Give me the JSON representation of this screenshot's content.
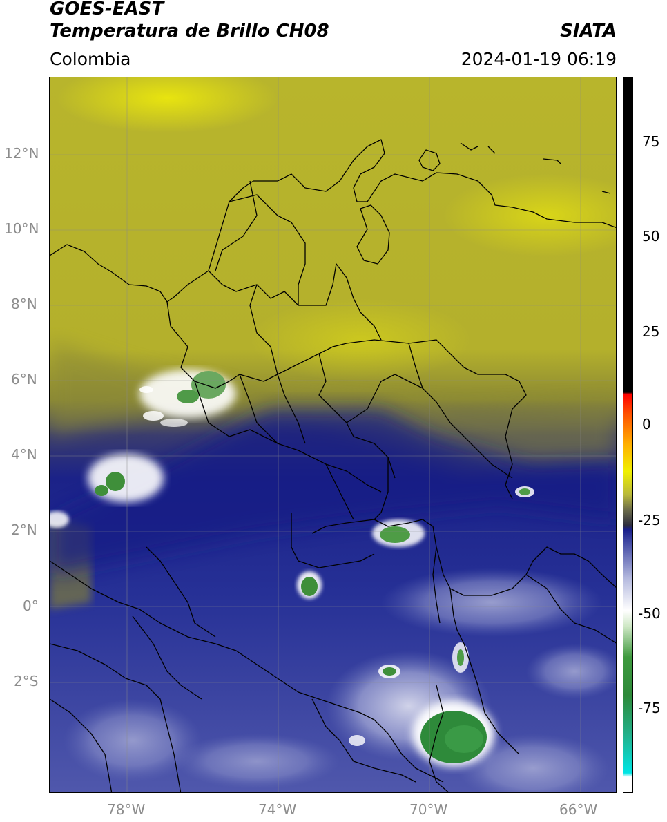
{
  "header": {
    "title_line1": "GOES-EAST",
    "title_line2": "Temperatura de Brillo CH08",
    "region": "Colombia",
    "source": "SIATA",
    "datetime": "2024-01-19 06:19"
  },
  "map": {
    "lon_range": [
      -80,
      -65
    ],
    "lat_range": [
      -5,
      14
    ],
    "lat_ticks": [
      {
        "value": 12,
        "label": "12°N"
      },
      {
        "value": 10,
        "label": "10°N"
      },
      {
        "value": 8,
        "label": "8°N"
      },
      {
        "value": 6,
        "label": "6°N"
      },
      {
        "value": 4,
        "label": "4°N"
      },
      {
        "value": 2,
        "label": "2°N"
      },
      {
        "value": 0,
        "label": "0°"
      },
      {
        "value": -2,
        "label": "2°S"
      }
    ],
    "lon_ticks": [
      {
        "value": -78,
        "label": "78°W"
      },
      {
        "value": -74,
        "label": "74°W"
      },
      {
        "value": -70,
        "label": "70°W"
      },
      {
        "value": -66,
        "label": "66°W"
      }
    ],
    "grid": true,
    "colors": {
      "warm_yellow": "#c7c331",
      "olive": "#9a9a2f",
      "dark_blue": "#1a2586",
      "light_blue": "#5a63b0",
      "white": "#ffffff",
      "green": "#2f8a3a",
      "border": "#000000"
    }
  },
  "colorbar": {
    "range": [
      -95,
      90
    ],
    "ticks": [
      {
        "value": 75,
        "label": "75"
      },
      {
        "value": 50,
        "label": "50"
      },
      {
        "value": 25,
        "label": "25"
      },
      {
        "value": 0,
        "label": "0"
      },
      {
        "value": -25,
        "label": "-25"
      },
      {
        "value": -50,
        "label": "-50"
      },
      {
        "value": -75,
        "label": "-75"
      }
    ],
    "stops": [
      {
        "value": -95,
        "color": "#ffffff"
      },
      {
        "value": -91,
        "color": "#ffffff"
      },
      {
        "value": -90,
        "color": "#00e5e5"
      },
      {
        "value": -80,
        "color": "#22b08a"
      },
      {
        "value": -70,
        "color": "#2e8a3a"
      },
      {
        "value": -60,
        "color": "#3f9a3f"
      },
      {
        "value": -52,
        "color": "#cfe8c6"
      },
      {
        "value": -48,
        "color": "#ffffff"
      },
      {
        "value": -40,
        "color": "#b8bde0"
      },
      {
        "value": -30,
        "color": "#3e46a2"
      },
      {
        "value": -27,
        "color": "#1a1f8a"
      },
      {
        "value": -26,
        "color": "#2c2c40"
      },
      {
        "value": -22,
        "color": "#6a6a4a"
      },
      {
        "value": -18,
        "color": "#b8b83a"
      },
      {
        "value": -12,
        "color": "#f0f000"
      },
      {
        "value": -5,
        "color": "#ffb000"
      },
      {
        "value": 3,
        "color": "#ff5000"
      },
      {
        "value": 8,
        "color": "#ff0000"
      },
      {
        "value": 8.5,
        "color": "#000000"
      },
      {
        "value": 90,
        "color": "#000000"
      }
    ]
  }
}
